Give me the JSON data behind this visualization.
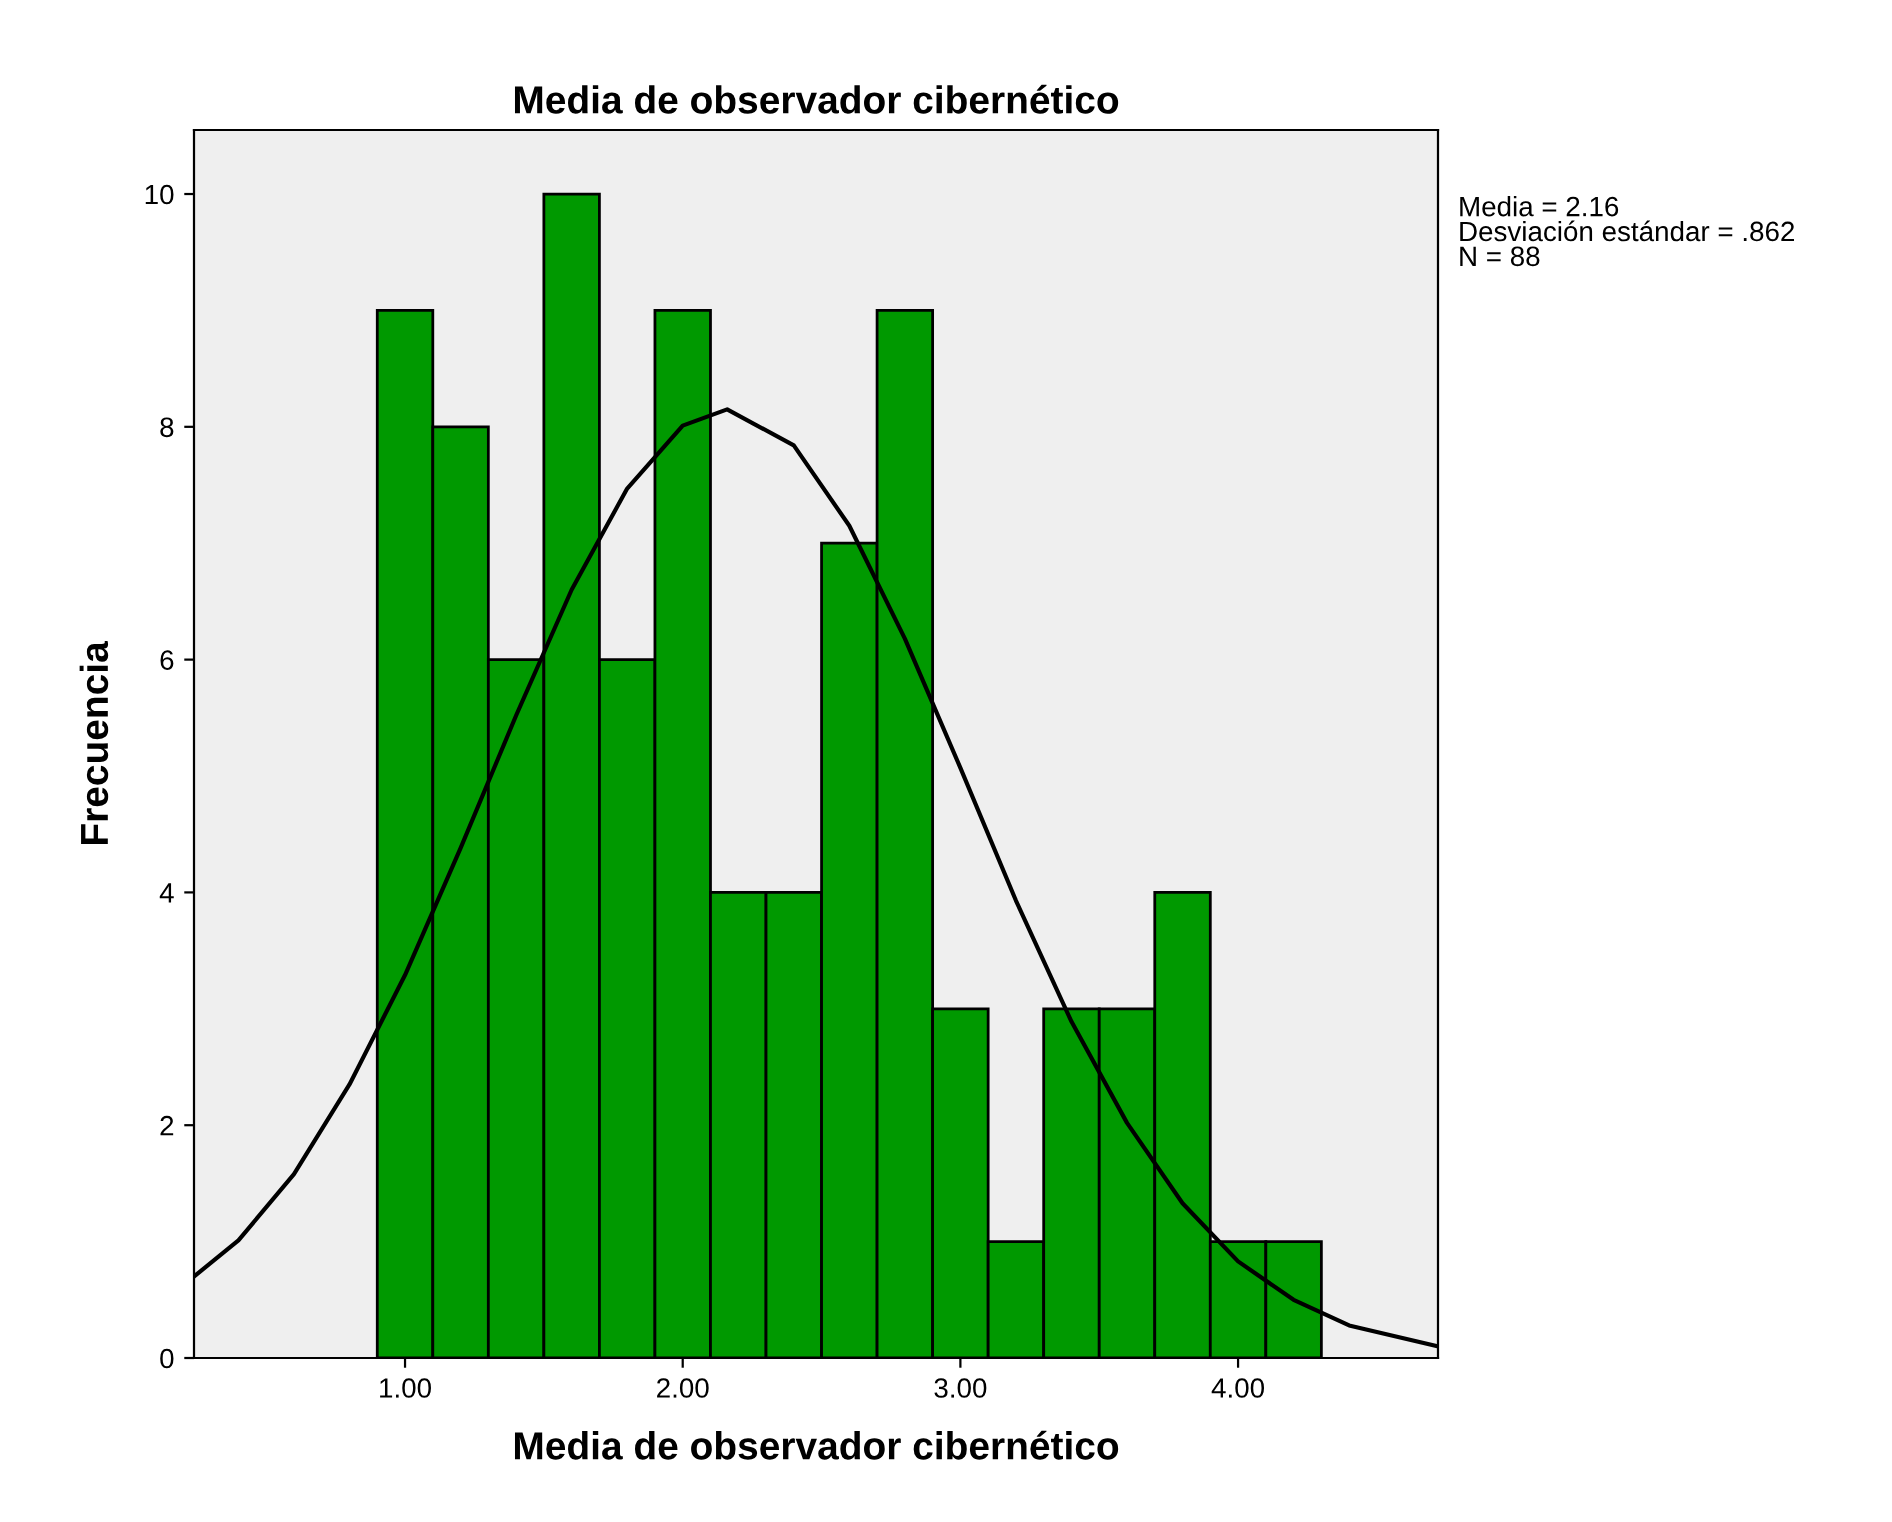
{
  "chart_data": {
    "type": "histogram",
    "title": "Media de observador cibernético",
    "xlabel": "Media de observador cibernético",
    "ylabel": "Frecuencia",
    "bins": [
      0.9,
      1.1,
      1.3,
      1.5,
      1.7,
      1.9,
      2.1,
      2.3,
      2.5,
      2.7,
      2.9,
      3.1,
      3.3,
      3.5,
      3.7,
      3.9,
      4.1,
      4.3
    ],
    "values": [
      9,
      8,
      6,
      10,
      6,
      9,
      4,
      4,
      7,
      9,
      3,
      1,
      3,
      3,
      4,
      1,
      1
    ],
    "color": "#009900",
    "series": [
      {
        "type": "line",
        "color": "#000000",
        "x": [
          0.24,
          0.4,
          0.6,
          0.8,
          1.0,
          1.2,
          1.4,
          1.6,
          1.8,
          2.0,
          2.16,
          2.4,
          2.6,
          2.8,
          3.0,
          3.2,
          3.4,
          3.6,
          3.8,
          4.0,
          4.2,
          4.4,
          4.72
        ],
        "values": [
          0.7,
          1.01,
          1.58,
          2.35,
          3.29,
          4.38,
          5.52,
          6.6,
          7.47,
          8.01,
          8.15,
          7.84,
          7.15,
          6.18,
          5.07,
          3.93,
          2.89,
          2.02,
          1.33,
          0.83,
          0.5,
          0.28,
          0.1
        ]
      }
    ],
    "xlim": [
      0.24,
      4.72
    ],
    "ylim": [
      0,
      10.55
    ],
    "xticks": [
      {
        "value": 1,
        "label": "1.00"
      },
      {
        "value": 2,
        "label": "2.00"
      },
      {
        "value": 3,
        "label": "3.00"
      },
      {
        "value": 4,
        "label": "4.00"
      }
    ],
    "yticks": [
      0,
      2,
      4,
      6,
      8,
      10
    ],
    "annotations": [
      "Media = 2.16\nDesviación estándar = .862\nN = 88"
    ],
    "grid": false,
    "legend": false
  }
}
